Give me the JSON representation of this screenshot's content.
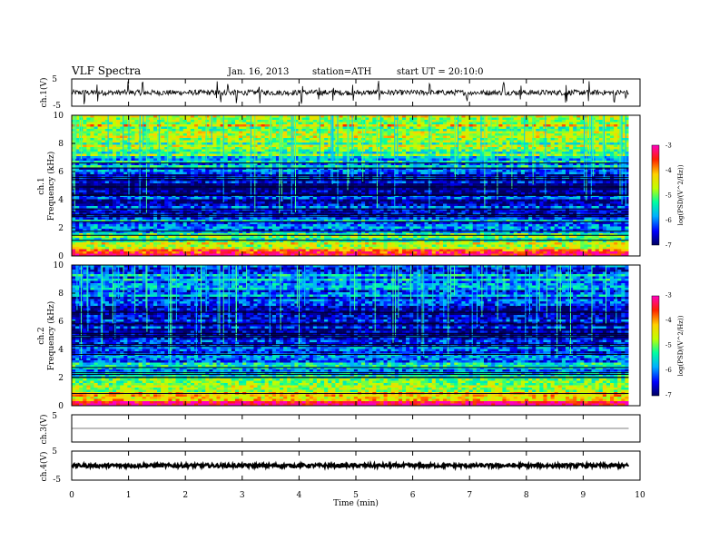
{
  "header": {
    "title": "VLF  Spectra",
    "date": "Jan. 16, 2013",
    "station": "station=ATH",
    "start": "start  UT  =    20:10:0"
  },
  "chart_data": [
    {
      "type": "line",
      "name": "ch1-waveform",
      "ylabel": "ch.1(V)",
      "ylim": [
        -5,
        5
      ],
      "yticks": [
        "5",
        "-5"
      ],
      "xlim": [
        0,
        10
      ],
      "mean": 0.0,
      "noise_amplitude": 0.25,
      "spikes_x": [
        0.22,
        0.45,
        1.0,
        1.25,
        2.55,
        2.62,
        2.75,
        2.9,
        3.3,
        4.05,
        4.35,
        4.6,
        4.95,
        5.4,
        6.3,
        6.95,
        7.6,
        7.9,
        8.7,
        9.1,
        9.55,
        9.75
      ]
    },
    {
      "type": "heatmap",
      "name": "ch1-spectrogram",
      "ylabel": "ch.1\nFrequency  (kHz)",
      "ylim": [
        0,
        10
      ],
      "yticks": [
        "0",
        "2",
        "4",
        "6",
        "8",
        "10"
      ],
      "xlim": [
        0,
        10
      ],
      "data_xmax": 9.8,
      "colorbar": {
        "label": "log(PSD/(V^2/Hz))",
        "range": [
          -7,
          -3
        ],
        "ticks": [
          "-3",
          "-4",
          "-5",
          "-6",
          "-7"
        ]
      },
      "level_profile": [
        {
          "f": 0.0,
          "level": -3.2
        },
        {
          "f": 0.5,
          "level": -3.9
        },
        {
          "f": 1.0,
          "level": -5.0
        },
        {
          "f": 2.0,
          "level": -5.8
        },
        {
          "f": 3.0,
          "level": -6.2
        },
        {
          "f": 4.0,
          "level": -6.6
        },
        {
          "f": 5.0,
          "level": -6.8
        },
        {
          "f": 6.0,
          "level": -6.3
        },
        {
          "f": 7.0,
          "level": -5.3
        },
        {
          "f": 8.0,
          "level": -4.8
        },
        {
          "f": 10.0,
          "level": -4.6
        }
      ]
    },
    {
      "type": "heatmap",
      "name": "ch2-spectrogram",
      "ylabel": "ch.2\nFrequency  (kHz)",
      "ylim": [
        0,
        10
      ],
      "yticks": [
        "0",
        "2",
        "4",
        "6",
        "8",
        "10"
      ],
      "xlim": [
        0,
        10
      ],
      "data_xmax": 9.8,
      "colorbar": {
        "label": "log(PSD/(V^2/Hz))",
        "range": [
          -7,
          -3
        ],
        "ticks": [
          "-3",
          "-4",
          "-5",
          "-6",
          "-7"
        ]
      },
      "level_profile": [
        {
          "f": 0.0,
          "level": -3.3
        },
        {
          "f": 0.5,
          "level": -4.0
        },
        {
          "f": 1.0,
          "level": -4.9
        },
        {
          "f": 2.0,
          "level": -5.4
        },
        {
          "f": 3.0,
          "level": -5.9
        },
        {
          "f": 4.0,
          "level": -6.3
        },
        {
          "f": 5.0,
          "level": -6.6
        },
        {
          "f": 6.0,
          "level": -6.7
        },
        {
          "f": 7.0,
          "level": -6.4
        },
        {
          "f": 8.0,
          "level": -6.1
        },
        {
          "f": 10.0,
          "level": -6.0
        }
      ]
    },
    {
      "type": "line",
      "name": "ch3-waveform",
      "ylabel": "ch.3(V)",
      "ylim": [
        -5,
        5
      ],
      "yticks": [
        "5"
      ],
      "xlim": [
        0,
        10
      ],
      "mean": 0.0,
      "noise_amplitude": 0.0
    },
    {
      "type": "line",
      "name": "ch4-waveform",
      "ylabel": "ch.4(V)",
      "ylim": [
        -5,
        5
      ],
      "yticks": [
        "5",
        "-5"
      ],
      "xlim": [
        0,
        10
      ],
      "mean": 0.0,
      "noise_amplitude": 0.15
    }
  ],
  "time_axis": {
    "label": "Time  (min)",
    "ticks": [
      "0",
      "1",
      "2",
      "3",
      "4",
      "5",
      "6",
      "7",
      "8",
      "9",
      "10"
    ]
  },
  "colorscale": [
    "#000060",
    "#0000ff",
    "#00b0ff",
    "#00ffa0",
    "#c0ff00",
    "#ffd000",
    "#ff2000",
    "#ff00c0"
  ]
}
